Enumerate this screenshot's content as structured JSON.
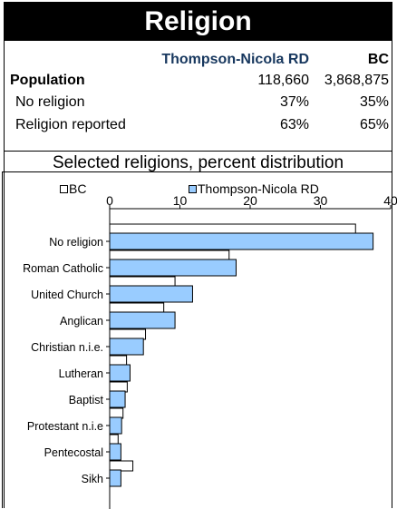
{
  "header": {
    "title": "Religion"
  },
  "stats": {
    "col_region": "Thompson-Nicola RD",
    "col_bc": "BC",
    "rows": [
      {
        "label": "Population",
        "region": "118,660",
        "bc": "3,868,875",
        "bold": true
      },
      {
        "label": "No religion",
        "region": "37%",
        "bc": "35%",
        "bold": false
      },
      {
        "label": "Religion reported",
        "region": "63%",
        "bc": "65%",
        "bold": false
      }
    ]
  },
  "chart_data": {
    "type": "bar",
    "orientation": "horizontal",
    "title": "Selected religions, percent distribution",
    "xlim": [
      0,
      40
    ],
    "xticks": [
      0,
      10,
      20,
      30,
      40
    ],
    "grid": false,
    "legend_position": "top",
    "categories": [
      "No religion",
      "Roman Catholic",
      "United Church",
      "Anglican",
      "Christian n.i.e.",
      "Lutheran",
      "Baptist",
      "Protestant n.i.e",
      "Pentecostal",
      "Sikh"
    ],
    "series": [
      {
        "name": "BC",
        "color": "#ffffff",
        "values": [
          35,
          17,
          9.3,
          7.7,
          5.1,
          2.4,
          2.5,
          1.9,
          1.2,
          3.3
        ]
      },
      {
        "name": "Thompson-Nicola RD",
        "color": "#99ccff",
        "values": [
          37.5,
          18,
          11.8,
          9.3,
          4.8,
          2.9,
          2.2,
          1.7,
          1.6,
          1.6
        ]
      }
    ]
  }
}
